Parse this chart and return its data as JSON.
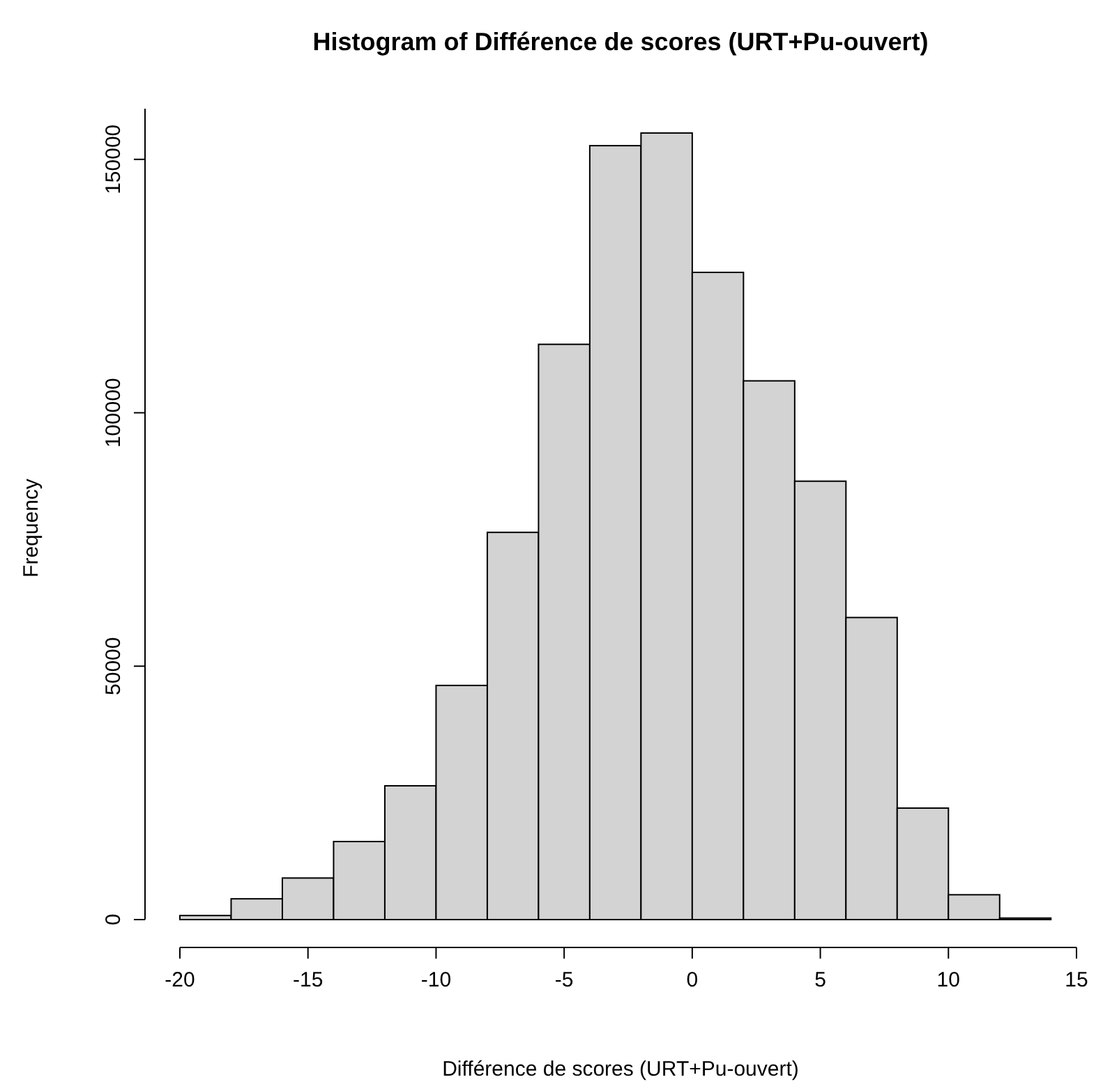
{
  "chart_data": {
    "type": "histogram",
    "title": "Histogram of Différence de scores (URT+Pu-ouvert)",
    "xlabel": "Différence de scores (URT+Pu-ouvert)",
    "ylabel": "Frequency",
    "bins": [
      -20,
      -18,
      -16,
      -14,
      -12,
      -10,
      -8,
      -6,
      -4,
      -2,
      0,
      2,
      4,
      6,
      8,
      10,
      12,
      14
    ],
    "values": [
      800,
      4100,
      8200,
      15400,
      26400,
      46200,
      76400,
      113500,
      152700,
      155200,
      127700,
      106300,
      86500,
      59600,
      22000,
      4900,
      300
    ],
    "color": "#d3d3d3",
    "xlim": [
      -20,
      15
    ],
    "xticks": [
      -20,
      -15,
      -10,
      -5,
      0,
      5,
      10,
      15
    ],
    "ylim": [
      0,
      160000
    ],
    "yticks": [
      0,
      50000,
      100000,
      150000
    ],
    "grid": false
  }
}
